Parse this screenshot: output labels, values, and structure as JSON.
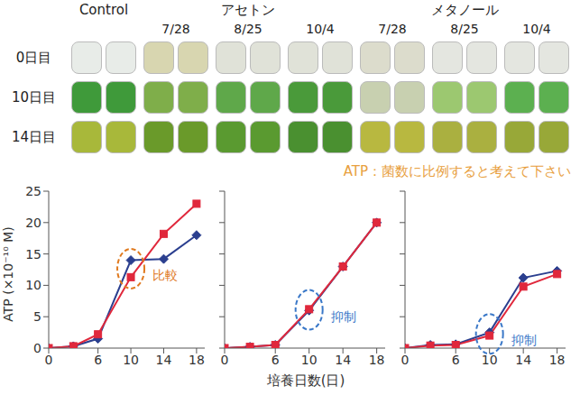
{
  "photos": {
    "groups": [
      {
        "label": "Control",
        "dates": []
      },
      {
        "label": "アセトン",
        "dates": [
          "7/28",
          "8/25",
          "10/4"
        ]
      },
      {
        "label": "メタノール",
        "dates": [
          "7/28",
          "8/25",
          "10/4"
        ]
      }
    ],
    "row_labels": [
      "0日目",
      "10日目",
      "14日目"
    ]
  },
  "note": "ATP：菌数に比例すると考えて下さい",
  "chart_data": [
    {
      "type": "line",
      "ylabel": "ATP (×10⁻¹⁰ M)",
      "x": [
        0,
        3,
        6,
        10,
        14,
        18
      ],
      "xlim": [
        0,
        19
      ],
      "xticks": [
        0,
        6,
        10,
        14,
        18
      ],
      "ylim": [
        0,
        25
      ],
      "yticks": [
        0,
        5,
        10,
        15,
        20,
        25
      ],
      "series": [
        {
          "color": "#2b3f8f",
          "marker": "diamond",
          "values": [
            0,
            0.3,
            1.5,
            14,
            14.2,
            18
          ]
        },
        {
          "color": "#e0283c",
          "marker": "square",
          "values": [
            0,
            0.3,
            2.2,
            11.3,
            18.2,
            23
          ]
        }
      ],
      "annotations": [
        {
          "text": "比較",
          "x": 10,
          "color": "#e07a1f"
        }
      ]
    },
    {
      "type": "line",
      "xlabel": "培養日数(日)",
      "tick_labels": "x",
      "x": [
        0,
        3,
        6,
        10,
        14,
        18
      ],
      "xlim": [
        0,
        19
      ],
      "xticks": [
        0,
        6,
        10,
        14,
        18
      ],
      "ylim": [
        0,
        25
      ],
      "yticks": [
        0,
        5,
        10,
        15,
        20,
        25
      ],
      "series": [
        {
          "color": "#2b3f8f",
          "marker": "diamond",
          "values": [
            0,
            0.2,
            0.5,
            6,
            13,
            20
          ]
        },
        {
          "color": "#e0283c",
          "marker": "square",
          "values": [
            0,
            0.2,
            0.5,
            6.2,
            13,
            20
          ]
        }
      ],
      "annotations": [
        {
          "text": "抑制",
          "x": 10,
          "color": "#3a78c8"
        }
      ]
    },
    {
      "type": "line",
      "tick_labels": "x",
      "x": [
        0,
        3,
        6,
        10,
        14,
        18
      ],
      "xlim": [
        0,
        19
      ],
      "xticks": [
        0,
        6,
        10,
        14,
        18
      ],
      "ylim": [
        0,
        25
      ],
      "yticks": [
        0,
        5,
        10,
        15,
        20,
        25
      ],
      "series": [
        {
          "color": "#2b3f8f",
          "marker": "diamond",
          "values": [
            0,
            0.5,
            0.6,
            2.5,
            11.2,
            12.3
          ]
        },
        {
          "color": "#e0283c",
          "marker": "square",
          "values": [
            0,
            0.4,
            0.5,
            2,
            9.8,
            11.8
          ]
        }
      ],
      "annotations": [
        {
          "text": "抑制",
          "x": 10,
          "color": "#3a78c8"
        }
      ]
    }
  ]
}
